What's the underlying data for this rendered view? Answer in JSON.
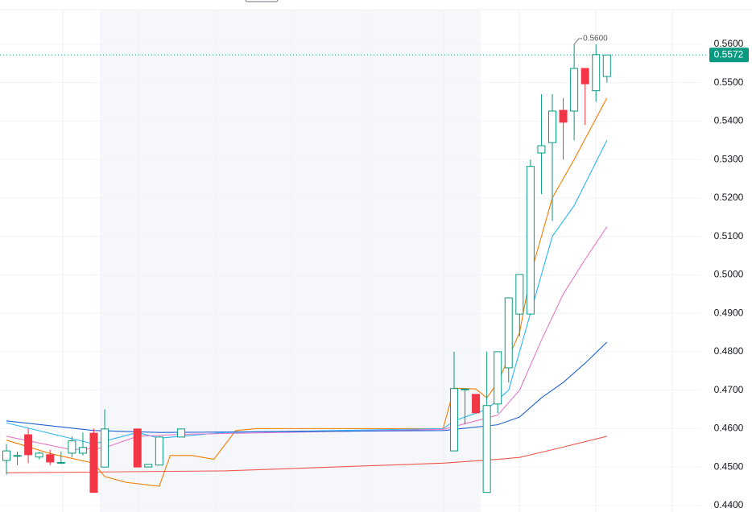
{
  "chart_data": {
    "type": "candlestick",
    "ylim": [
      0.4383,
      0.5715
    ],
    "xlim": [
      -0.59,
      63.57
    ],
    "yticks": [
      {
        "value": 0.44,
        "label": "0.4400"
      },
      {
        "value": 0.45,
        "label": "0.4500"
      },
      {
        "value": 0.46,
        "label": "0.4600"
      },
      {
        "value": 0.47,
        "label": "0.4700"
      },
      {
        "value": 0.48,
        "label": "0.4800"
      },
      {
        "value": 0.49,
        "label": "0.4900"
      },
      {
        "value": 0.5,
        "label": "0.5000"
      },
      {
        "value": 0.51,
        "label": "0.5100"
      },
      {
        "value": 0.52,
        "label": "0.5200"
      },
      {
        "value": 0.53,
        "label": "0.5300"
      },
      {
        "value": 0.54,
        "label": "0.5400"
      },
      {
        "value": 0.55,
        "label": "0.5500"
      },
      {
        "value": 0.56,
        "label": "0.5600"
      }
    ],
    "grid": true,
    "up_color": "#089981",
    "down_color": "#f23645",
    "candles": {
      "x": [
        0,
        1,
        2,
        3,
        4,
        5,
        6,
        7,
        8,
        9,
        12,
        13,
        14,
        16,
        41,
        42,
        43,
        44,
        45,
        46,
        47,
        48,
        49,
        50,
        51,
        52,
        53,
        54,
        55
      ],
      "open": [
        0.4517,
        0.4528,
        0.4584,
        0.4526,
        0.4532,
        0.451,
        0.4536,
        0.4536,
        0.4588,
        0.45,
        0.4599,
        0.45,
        0.4505,
        0.4578,
        0.4542,
        0.4703,
        0.4689,
        0.4434,
        0.4664,
        0.4758,
        0.4898,
        0.4898,
        0.5317,
        0.5344,
        0.5428,
        0.5426,
        0.5537,
        0.5479,
        0.5516
      ],
      "high": [
        0.456,
        0.454,
        0.46,
        0.454,
        0.4545,
        0.454,
        0.458,
        0.459,
        0.46,
        0.465,
        0.46,
        0.4507,
        0.458,
        0.46,
        0.48,
        0.4703,
        0.469,
        0.48,
        0.48,
        0.494,
        0.5001,
        0.53,
        0.547,
        0.547,
        0.546,
        0.56,
        0.5537,
        0.56,
        0.5572
      ],
      "low": [
        0.448,
        0.4505,
        0.451,
        0.452,
        0.4505,
        0.4508,
        0.4525,
        0.453,
        0.4434,
        0.45,
        0.45,
        0.45,
        0.4505,
        0.4578,
        0.4542,
        0.4611,
        0.464,
        0.4434,
        0.464,
        0.472,
        0.484,
        0.4898,
        0.521,
        0.514,
        0.53,
        0.535,
        0.539,
        0.545,
        0.55
      ],
      "close": [
        0.4542,
        0.453,
        0.4532,
        0.4536,
        0.4513,
        0.4512,
        0.4568,
        0.4551,
        0.4434,
        0.4599,
        0.45,
        0.4507,
        0.4578,
        0.4599,
        0.4704,
        0.4703,
        0.4641,
        0.466,
        0.48,
        0.494,
        0.5001,
        0.5282,
        0.5336,
        0.5426,
        0.5397,
        0.5537,
        0.5497,
        0.5573,
        0.5572
      ]
    },
    "lines": [
      {
        "color": "#f57c00",
        "x": [
          0,
          4,
          8,
          9,
          11,
          14,
          15,
          17,
          19,
          21,
          23,
          40,
          41,
          43,
          44,
          45,
          47,
          48,
          50,
          52,
          55
        ],
        "values": [
          0.457,
          0.4535,
          0.451,
          0.4475,
          0.446,
          0.445,
          0.453,
          0.453,
          0.452,
          0.4595,
          0.46,
          0.46,
          0.4705,
          0.4703,
          0.468,
          0.472,
          0.485,
          0.5,
          0.52,
          0.53,
          0.546
        ]
      },
      {
        "color": "#29b6f6",
        "x": [
          0,
          8,
          12,
          14,
          20,
          40,
          41,
          43,
          44,
          46,
          48,
          50,
          52,
          55
        ],
        "values": [
          0.4615,
          0.456,
          0.459,
          0.4575,
          0.459,
          0.46,
          0.462,
          0.464,
          0.465,
          0.47,
          0.49,
          0.51,
          0.518,
          0.535
        ]
      },
      {
        "color": "#e879c8",
        "x": [
          0,
          6,
          9,
          12,
          16,
          40,
          43,
          45,
          47,
          49,
          51,
          53,
          55
        ],
        "values": [
          0.458,
          0.4545,
          0.455,
          0.458,
          0.4585,
          0.4598,
          0.462,
          0.4635,
          0.47,
          0.483,
          0.495,
          0.504,
          0.5125
        ]
      },
      {
        "color": "#1e63d6",
        "x": [
          0,
          8,
          14,
          40,
          45,
          47,
          49,
          51,
          53,
          55
        ],
        "values": [
          0.462,
          0.4595,
          0.459,
          0.4595,
          0.461,
          0.463,
          0.468,
          0.472,
          0.477,
          0.4825
        ]
      },
      {
        "color": "#f0584c",
        "x": [
          0,
          20,
          40,
          45,
          47,
          50,
          55
        ],
        "values": [
          0.4485,
          0.449,
          0.451,
          0.452,
          0.4525,
          0.4545,
          0.458
        ]
      }
    ],
    "last_price": {
      "value": 0.5572,
      "label": "0.5572"
    },
    "high_label": {
      "x": 52,
      "value": 0.56,
      "label": "0.5600"
    }
  }
}
